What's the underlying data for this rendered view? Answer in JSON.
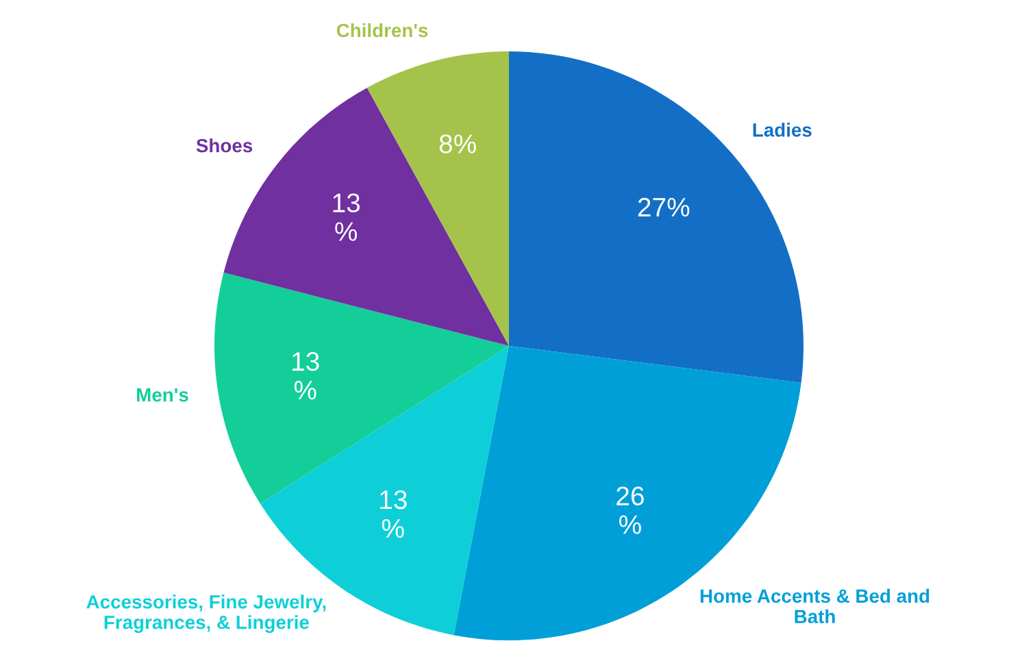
{
  "chart_data": {
    "type": "pie",
    "categories": [
      "Ladies",
      "Home Accents & Bed and\nBath",
      "Accessories, Fine Jewelry,\nFragrances, & Lingerie",
      "Men's",
      "Shoes",
      "Children's"
    ],
    "values": [
      27,
      26,
      13,
      13,
      13,
      8
    ],
    "colors": [
      "#136fc6",
      "#019fd8",
      "#0ecfd8",
      "#13ce99",
      "#7030a0",
      "#a5c34a"
    ],
    "value_labels": [
      "27%",
      "26\n%",
      "13\n%",
      "13\n%",
      "13\n%",
      "8%"
    ]
  }
}
